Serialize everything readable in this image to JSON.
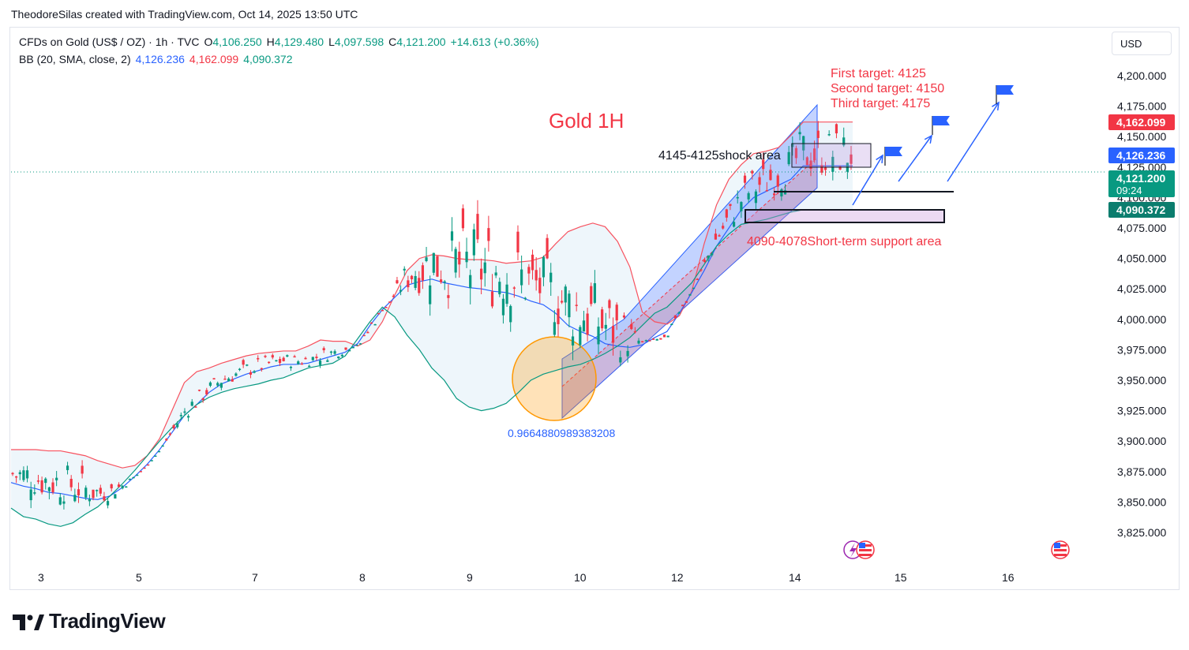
{
  "header": {
    "credit": "TheodoreSilas created with TradingView.com, Oct 14, 2025 13:50 UTC"
  },
  "legend": {
    "symbol": "CFDs on Gold (US$ / OZ) · 1h · TVC",
    "open_label": "O",
    "open": "4,106.250",
    "high_label": "H",
    "high": "4,129.480",
    "low_label": "L",
    "low": "4,097.598",
    "close_label": "C",
    "close": "4,121.200",
    "change": "+14.613 (+0.36%)",
    "bb_label": "BB (20, SMA, close, 2)",
    "bb_middle": "4,126.236",
    "bb_upper": "4,162.099",
    "bb_lower": "4,090.372"
  },
  "currency_button": "USD",
  "brand": "TradingView",
  "colors": {
    "up": "#089981",
    "down": "#f23645",
    "bb_middle": "#2962ff",
    "bb_upper": "#f7525f",
    "bb_lower": "#089981",
    "band_fill": "#eef6fb",
    "annotation_red": "#f23645",
    "channel_blue": "#2962ff"
  },
  "chart_data": {
    "type": "candlestick",
    "title": "Gold 1H",
    "y_axis": {
      "ticks": [
        "4,200.000",
        "4,175.000",
        "4,150.000",
        "4,125.000",
        "4,100.000",
        "4,075.000",
        "4,050.000",
        "4,025.000",
        "4,000.000",
        "3,975.000",
        "3,950.000",
        "3,925.000",
        "3,900.000",
        "3,875.000",
        "3,850.000",
        "3,825.000"
      ],
      "ylim": [
        3810,
        4230
      ],
      "position": "right"
    },
    "x_axis": {
      "ticks": [
        "3",
        "5",
        "7",
        "8",
        "9",
        "10",
        "12",
        "14",
        "15",
        "16"
      ]
    },
    "price_labels": [
      {
        "value": "4,162.099",
        "color": "#f23645"
      },
      {
        "value": "4,126.236",
        "color": "#2962ff"
      },
      {
        "value": "4,121.200",
        "sub": "09:24",
        "color": "#089981"
      },
      {
        "value": "4,090.372",
        "color": "#0b7d6e"
      }
    ],
    "bollinger_upper": [
      3893,
      3893,
      3893,
      3892,
      3892,
      3890,
      3888,
      3884,
      3881,
      3878,
      3880,
      3888,
      3902,
      3925,
      3948,
      3957,
      3960,
      3964,
      3967,
      3970,
      3972,
      3973,
      3974,
      3974,
      3978,
      3983,
      3982,
      3982,
      3978,
      3983,
      3998,
      4020,
      4040,
      4050,
      4053,
      4052,
      4050,
      4049,
      4049,
      4048,
      4046,
      4047,
      4048,
      4051,
      4062,
      4072,
      4076,
      4079,
      4076,
      4064,
      4043,
      4006,
      3998,
      3996,
      4003,
      4023,
      4062,
      4094,
      4115,
      4127,
      4136,
      4138,
      4141,
      4151,
      4162,
      4162,
      4162,
      4162,
      4162
    ],
    "bollinger_middle": [
      3866,
      3863,
      3861,
      3858,
      3857,
      3855,
      3853,
      3852,
      3855,
      3862,
      3871,
      3881,
      3893,
      3907,
      3921,
      3930,
      3940,
      3947,
      3951,
      3955,
      3958,
      3961,
      3963,
      3963,
      3964,
      3967,
      3970,
      3973,
      3980,
      3995,
      4008,
      4018,
      4028,
      4031,
      4033,
      4030,
      4028,
      4026,
      4025,
      4023,
      4022,
      4019,
      4015,
      4012,
      4005,
      3995,
      3990,
      3986,
      3980,
      3978,
      3977,
      3979,
      3985,
      3990,
      4005,
      4022,
      4040,
      4060,
      4075,
      4090,
      4100,
      4105,
      4110,
      4115,
      4126,
      4126,
      4126,
      4126,
      4126
    ],
    "bollinger_lower": [
      3845,
      3838,
      3836,
      3832,
      3830,
      3833,
      3840,
      3846,
      3855,
      3865,
      3876,
      3888,
      3900,
      3911,
      3921,
      3930,
      3936,
      3940,
      3943,
      3945,
      3947,
      3950,
      3952,
      3956,
      3960,
      3962,
      3964,
      3970,
      3984,
      3998,
      4010,
      4002,
      3987,
      3975,
      3960,
      3950,
      3935,
      3928,
      3925,
      3927,
      3931,
      3940,
      3950,
      3955,
      3958,
      3961,
      3963,
      3967,
      3972,
      3978,
      3985,
      3995,
      4005,
      4010,
      4020,
      4030,
      4045,
      4060,
      4070,
      4078,
      4080,
      4082,
      4085,
      4088,
      4090,
      4090,
      4090,
      4090,
      4090
    ],
    "candles_open_close_sample": "generated along midline of bands",
    "annotations": [
      {
        "text": "First target: 4125",
        "value": 4125
      },
      {
        "text": "Second target: 4150",
        "value": 4150
      },
      {
        "text": "Third target: 4175",
        "value": 4175
      },
      {
        "text": "4145-4125shock area",
        "range": [
          4125,
          4145
        ]
      },
      {
        "text": "4090-4078Short-term support area",
        "range": [
          4078,
          4090
        ]
      },
      {
        "text": "0.9664880989383208"
      }
    ],
    "legend": "top-left",
    "grid": false
  }
}
